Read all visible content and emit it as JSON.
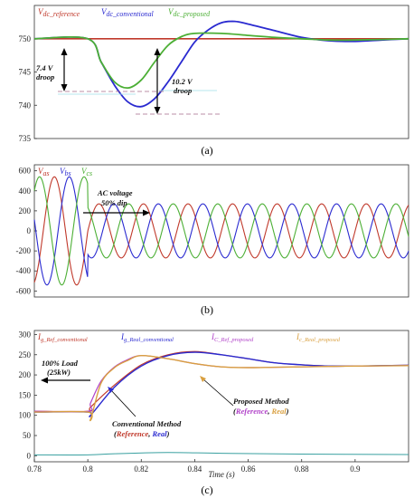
{
  "panels": [
    {
      "caption": "(a)",
      "legend": [
        {
          "label": "V_dc_reference",
          "main": "V",
          "sub": "dc_reference",
          "color": "#c0392b"
        },
        {
          "label": "V_dc_conventional",
          "main": "V",
          "sub": "dc_conventional",
          "color": "#2a2ad0"
        },
        {
          "label": "V_dc_proposed",
          "main": "V",
          "sub": "dc_proposed",
          "color": "#4caf35"
        }
      ],
      "annotations": [
        {
          "text": "7.4 V",
          "text2": "droop"
        },
        {
          "text": "10.2 V",
          "text2": "droop"
        }
      ]
    },
    {
      "caption": "(b)",
      "legend": [
        {
          "label": "V_as",
          "main": "V",
          "sub": "as",
          "color": "#c0392b"
        },
        {
          "label": "V_bs",
          "main": "V",
          "sub": "bs",
          "color": "#2a2ad0"
        },
        {
          "label": "V_cs",
          "main": "V",
          "sub": "cs",
          "color": "#4caf35"
        }
      ],
      "annotations": [
        {
          "text": "AC voltage",
          "text2": "50% dip"
        }
      ]
    },
    {
      "caption": "(c)",
      "legend": [
        {
          "label": "I_g_Ref_conventional",
          "main": "I",
          "sub": "g_Ref_conventional",
          "color": "#c0392b"
        },
        {
          "label": "I_g_Real_conventional",
          "main": "I",
          "sub": "g_Real_conventional",
          "color": "#2a2ad0"
        },
        {
          "label": "I_C_Ref_proposed",
          "main": "I",
          "sub": "C_Ref_proposed",
          "color": "#b040c8"
        },
        {
          "label": "I_c_Real_proposed",
          "main": "I",
          "sub": "c_Real_proposed",
          "color": "#d9a040"
        }
      ],
      "annotations": [
        {
          "text": "100% Load",
          "text2": "(25kW)"
        },
        {
          "text": "Proposed Method",
          "ref": "Reference",
          "real": "Real",
          "refColor": "#b040c8",
          "realColor": "#d9a040"
        },
        {
          "text": "Conventional Method",
          "ref": "Reference",
          "real": "Real",
          "refColor": "#c0392b",
          "realColor": "#2a2ad0"
        }
      ],
      "xlabel": "Time (s)"
    }
  ],
  "chart_data": [
    {
      "type": "line",
      "panel": "a",
      "y_ticks": [
        735,
        740,
        745,
        750
      ],
      "ylim": [
        735,
        755
      ],
      "xlim": [
        0.78,
        0.92
      ],
      "grid": false,
      "legend_position": "top-left",
      "series": [
        {
          "name": "V_dc_reference",
          "color": "#c0392b",
          "x": [
            0.78,
            0.92
          ],
          "y": [
            750,
            750
          ]
        },
        {
          "name": "V_dc_conventional",
          "color": "#2a2ad0",
          "x": [
            0.78,
            0.8,
            0.805,
            0.81,
            0.815,
            0.82,
            0.825,
            0.83,
            0.835,
            0.84,
            0.845,
            0.85,
            0.855,
            0.86,
            0.87,
            0.88,
            0.89,
            0.9,
            0.91,
            0.92
          ],
          "y": [
            750,
            750,
            746.5,
            743,
            740.5,
            739.8,
            741,
            743.5,
            746.5,
            749.5,
            751.3,
            752.4,
            752.6,
            752.2,
            751.2,
            750.2,
            749.7,
            749.6,
            749.8,
            750
          ]
        },
        {
          "name": "V_dc_proposed",
          "color": "#4caf35",
          "x": [
            0.78,
            0.8,
            0.805,
            0.81,
            0.815,
            0.82,
            0.825,
            0.83,
            0.835,
            0.84,
            0.85,
            0.86,
            0.87,
            0.88,
            0.89,
            0.9,
            0.92
          ],
          "y": [
            750,
            750,
            746.5,
            743.5,
            742.6,
            743.8,
            746.5,
            749,
            750.3,
            750.8,
            750.8,
            750.5,
            750.2,
            750,
            749.8,
            749.8,
            750
          ]
        }
      ]
    },
    {
      "type": "line",
      "panel": "b",
      "y_ticks": [
        -600,
        -400,
        -200,
        0,
        200,
        400,
        600
      ],
      "ylim": [
        -660,
        660
      ],
      "xlim": [
        0.78,
        0.92
      ],
      "grid": false,
      "legend_position": "top-left",
      "waveform": {
        "frequency_hz": 60,
        "amplitude_before": 540,
        "amplitude_after": 270,
        "dip_time": 0.8,
        "phase_shift_deg": [
          0,
          -120,
          120
        ]
      },
      "series": [
        {
          "name": "V_as",
          "color": "#c0392b"
        },
        {
          "name": "V_bs",
          "color": "#2a2ad0"
        },
        {
          "name": "V_cs",
          "color": "#4caf35"
        }
      ]
    },
    {
      "type": "line",
      "panel": "c",
      "y_ticks": [
        0,
        50,
        100,
        150,
        200,
        250,
        300
      ],
      "x_ticks": [
        0.78,
        0.8,
        0.82,
        0.84,
        0.86,
        0.88,
        0.9
      ],
      "xlabel": "Time (s)",
      "ylim": [
        -15,
        310
      ],
      "xlim": [
        0.78,
        0.92
      ],
      "grid": false,
      "legend_position": "top-left",
      "series": [
        {
          "name": "I_g_Ref_conventional",
          "color": "#c0392b",
          "x": [
            0.78,
            0.8,
            0.801,
            0.81,
            0.82,
            0.83,
            0.84,
            0.85,
            0.86,
            0.87,
            0.88,
            0.89,
            0.9,
            0.91,
            0.92
          ],
          "y": [
            110,
            110,
            120,
            175,
            225,
            250,
            258,
            250,
            240,
            230,
            225,
            222,
            222,
            223,
            224
          ]
        },
        {
          "name": "I_g_Real_conventional",
          "color": "#2a2ad0",
          "x": [
            0.78,
            0.8,
            0.801,
            0.81,
            0.82,
            0.83,
            0.84,
            0.85,
            0.86,
            0.87,
            0.88,
            0.89,
            0.9,
            0.91,
            0.92
          ],
          "y": [
            108,
            108,
            100,
            170,
            222,
            248,
            256,
            250,
            240,
            230,
            225,
            222,
            222,
            223,
            224
          ]
        },
        {
          "name": "I_C_Ref_proposed",
          "color": "#b040c8",
          "x": [
            0.78,
            0.8,
            0.801,
            0.805,
            0.81,
            0.815,
            0.82,
            0.83,
            0.84,
            0.85,
            0.86,
            0.87,
            0.88,
            0.89,
            0.9,
            0.92
          ],
          "y": [
            110,
            110,
            130,
            185,
            220,
            238,
            248,
            240,
            228,
            220,
            218,
            219,
            220,
            221,
            222,
            223
          ]
        },
        {
          "name": "I_c_Real_proposed",
          "color": "#d9a040",
          "x": [
            0.78,
            0.8,
            0.801,
            0.805,
            0.81,
            0.815,
            0.82,
            0.83,
            0.84,
            0.85,
            0.86,
            0.87,
            0.88,
            0.89,
            0.9,
            0.92
          ],
          "y": [
            108,
            108,
            90,
            180,
            218,
            236,
            248,
            240,
            228,
            220,
            218,
            219,
            220,
            221,
            222,
            223
          ]
        },
        {
          "name": "bottom_trace",
          "color": "#39a0a0",
          "x": [
            0.78,
            0.8,
            0.81,
            0.83,
            0.85,
            0.88,
            0.92
          ],
          "y": [
            2,
            2,
            5,
            8,
            6,
            4,
            3
          ]
        }
      ]
    }
  ]
}
